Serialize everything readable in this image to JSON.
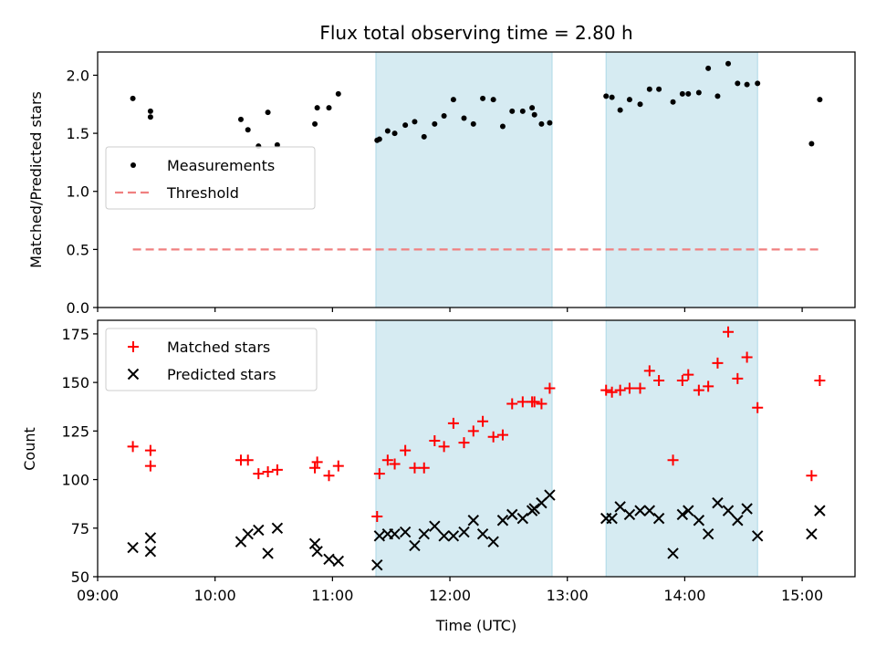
{
  "chart_data": {
    "title": "Flux total observing time = 2.80 h",
    "x_axis": {
      "label": "Time (UTC)",
      "range_hours": [
        9.0,
        15.45
      ],
      "ticks": [
        {
          "value": 9,
          "label": "09:00"
        },
        {
          "value": 10,
          "label": "10:00"
        },
        {
          "value": 11,
          "label": "11:00"
        },
        {
          "value": 12,
          "label": "12:00"
        },
        {
          "value": 13,
          "label": "13:00"
        },
        {
          "value": 14,
          "label": "14:00"
        },
        {
          "value": 15,
          "label": "15:00"
        }
      ]
    },
    "shaded_intervals": [
      {
        "start": 11.37,
        "end": 12.87
      },
      {
        "start": 13.33,
        "end": 14.62
      }
    ],
    "shade_color": "#add8e6",
    "panels": [
      {
        "type": "scatter",
        "ylabel": "Matched/Predicted stars",
        "ylim": [
          0,
          2.2
        ],
        "yticks": [
          {
            "value": 0.0,
            "label": "0.0"
          },
          {
            "value": 0.5,
            "label": "0.5"
          },
          {
            "value": 1.0,
            "label": "1.0"
          },
          {
            "value": 1.5,
            "label": "1.5"
          },
          {
            "value": 2.0,
            "label": "2.0"
          }
        ],
        "legend": {
          "position": "center-left",
          "entries": [
            {
              "label": "Measurements",
              "marker": "dot",
              "color": "#000000"
            },
            {
              "label": "Threshold",
              "marker": "dashed-line",
              "color": "#f08080"
            }
          ]
        },
        "threshold": {
          "value": 0.5,
          "x_start": 9.3,
          "x_end": 15.15,
          "color": "#f08080"
        },
        "measurements": {
          "x": [
            9.3,
            9.45,
            9.45,
            10.22,
            10.28,
            10.37,
            10.45,
            10.53,
            10.85,
            10.87,
            10.97,
            11.05,
            11.38,
            11.4,
            11.47,
            11.53,
            11.62,
            11.7,
            11.78,
            11.87,
            11.95,
            12.03,
            12.12,
            12.2,
            12.28,
            12.37,
            12.45,
            12.53,
            12.62,
            12.7,
            12.72,
            12.78,
            12.85,
            13.33,
            13.38,
            13.45,
            13.53,
            13.62,
            13.7,
            13.78,
            13.9,
            13.98,
            14.03,
            14.12,
            14.2,
            14.28,
            14.37,
            14.45,
            14.53,
            14.62,
            15.08,
            15.15
          ],
          "y": [
            1.8,
            1.69,
            1.64,
            1.62,
            1.53,
            1.39,
            1.68,
            1.4,
            1.58,
            1.72,
            1.72,
            1.84,
            1.44,
            1.45,
            1.52,
            1.5,
            1.57,
            1.6,
            1.47,
            1.58,
            1.65,
            1.79,
            1.63,
            1.58,
            1.8,
            1.79,
            1.56,
            1.69,
            1.69,
            1.72,
            1.66,
            1.58,
            1.59,
            1.82,
            1.81,
            1.7,
            1.79,
            1.75,
            1.88,
            1.88,
            1.77,
            1.84,
            1.84,
            1.85,
            2.06,
            1.82,
            2.1,
            1.93,
            1.92,
            1.93,
            1.41,
            1.79
          ]
        }
      },
      {
        "type": "scatter",
        "ylabel": "Count",
        "ylim": [
          50,
          182
        ],
        "yticks": [
          {
            "value": 50,
            "label": "50"
          },
          {
            "value": 75,
            "label": "75"
          },
          {
            "value": 100,
            "label": "100"
          },
          {
            "value": 125,
            "label": "125"
          },
          {
            "value": 150,
            "label": "150"
          },
          {
            "value": 175,
            "label": "175"
          }
        ],
        "legend": {
          "position": "upper-left",
          "entries": [
            {
              "label": "Matched stars",
              "marker": "plus",
              "color": "#ff0000"
            },
            {
              "label": "Predicted stars",
              "marker": "x",
              "color": "#000000"
            }
          ]
        },
        "matched": {
          "x": [
            9.3,
            9.45,
            9.45,
            10.22,
            10.28,
            10.37,
            10.45,
            10.53,
            10.85,
            10.87,
            10.97,
            11.05,
            11.38,
            11.4,
            11.47,
            11.53,
            11.62,
            11.7,
            11.78,
            11.87,
            11.95,
            12.03,
            12.12,
            12.2,
            12.28,
            12.37,
            12.45,
            12.53,
            12.62,
            12.7,
            12.72,
            12.78,
            12.85,
            13.33,
            13.38,
            13.45,
            13.53,
            13.62,
            13.7,
            13.78,
            13.9,
            13.98,
            14.03,
            14.12,
            14.2,
            14.28,
            14.37,
            14.45,
            14.53,
            14.62,
            15.08,
            15.15
          ],
          "y": [
            117,
            115,
            107,
            110,
            110,
            103,
            104,
            105,
            106,
            109,
            102,
            107,
            81,
            103,
            110,
            108,
            115,
            106,
            106,
            120,
            117,
            129,
            119,
            125,
            130,
            122,
            123,
            139,
            140,
            140,
            140,
            139,
            147,
            146,
            145,
            146,
            147,
            147,
            156,
            151,
            110,
            151,
            154,
            146,
            148,
            160,
            176,
            152,
            163,
            137,
            102,
            151
          ]
        },
        "predicted": {
          "x": [
            9.3,
            9.45,
            9.45,
            10.22,
            10.28,
            10.37,
            10.45,
            10.53,
            10.85,
            10.87,
            10.97,
            11.05,
            11.38,
            11.4,
            11.47,
            11.53,
            11.62,
            11.7,
            11.78,
            11.87,
            11.95,
            12.03,
            12.12,
            12.2,
            12.28,
            12.37,
            12.45,
            12.53,
            12.62,
            12.7,
            12.72,
            12.78,
            12.85,
            13.33,
            13.38,
            13.45,
            13.53,
            13.62,
            13.7,
            13.78,
            13.9,
            13.98,
            14.03,
            14.12,
            14.2,
            14.28,
            14.37,
            14.45,
            14.53,
            14.62,
            15.08,
            15.15
          ],
          "y": [
            65,
            70,
            63,
            68,
            72,
            74,
            62,
            75,
            67,
            63,
            59,
            58,
            56,
            71,
            72,
            72,
            73,
            66,
            72,
            76,
            71,
            71,
            73,
            79,
            72,
            68,
            79,
            82,
            80,
            84,
            85,
            88,
            92,
            80,
            80,
            86,
            82,
            84,
            84,
            80,
            62,
            82,
            84,
            79,
            72,
            88,
            84,
            79,
            85,
            71,
            72,
            84
          ]
        }
      }
    ]
  }
}
